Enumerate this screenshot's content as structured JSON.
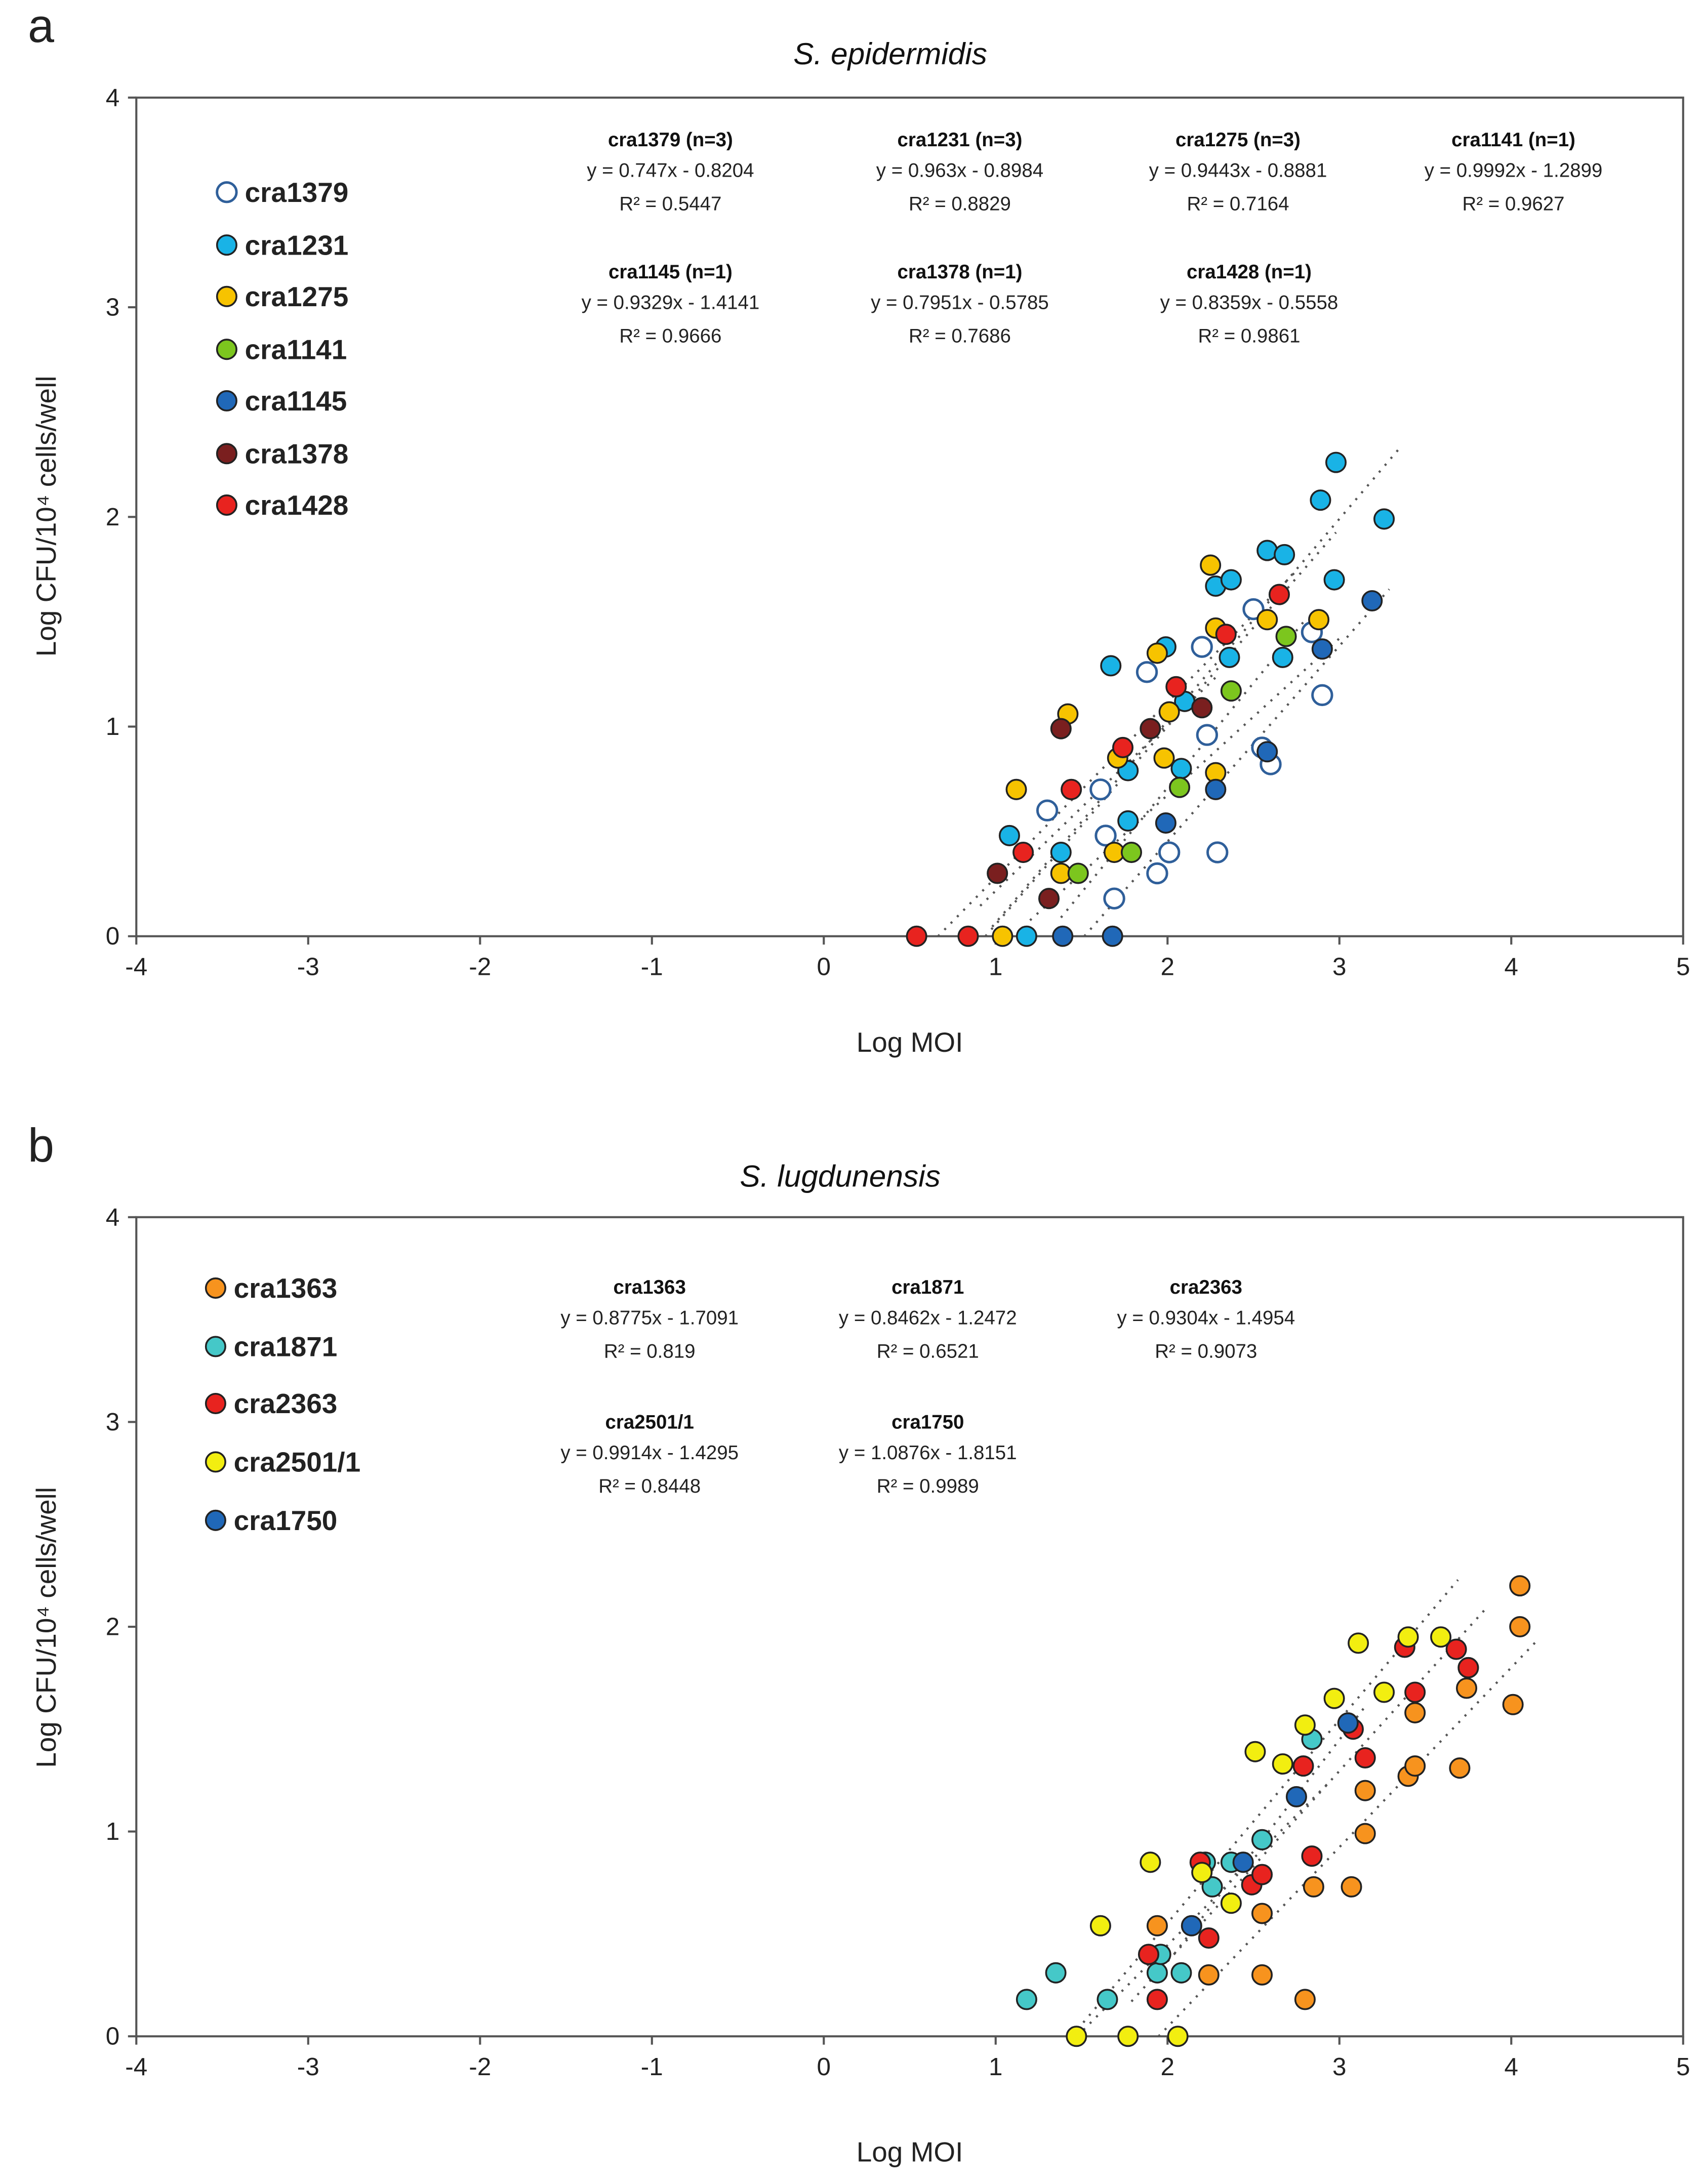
{
  "chart_data": [
    {
      "type": "scatter",
      "panel_label": "a",
      "title": "S. epidermidis",
      "xlabel": "Log MOI",
      "ylabel": "Log CFU/10⁴ cells/well",
      "xlim": [
        -4,
        5
      ],
      "ylim": [
        0,
        4
      ],
      "xticks": [
        "-4",
        "-3",
        "-2",
        "-1",
        "0",
        "1",
        "2",
        "3",
        "4",
        "5"
      ],
      "yticks": [
        "0",
        "1",
        "2",
        "3",
        "4"
      ],
      "legend_position": "top-left",
      "series": [
        {
          "name": "cra1379",
          "color": "#ffffff",
          "stroke": "#2f5f9a",
          "open": true,
          "label": "cra1379 (n=3)",
          "equation": "y = 0.747x - 0.8204",
          "r2": "R² = 0.5447",
          "slope": 0.747,
          "intercept": -0.8204,
          "points": [
            [
              1.3,
              0.6
            ],
            [
              1.61,
              0.7
            ],
            [
              1.64,
              0.48
            ],
            [
              1.69,
              0.18
            ],
            [
              1.88,
              1.26
            ],
            [
              1.94,
              0.3
            ],
            [
              2.01,
              0.4
            ],
            [
              2.2,
              1.38
            ],
            [
              2.23,
              0.96
            ],
            [
              2.29,
              0.4
            ],
            [
              2.5,
              1.56
            ],
            [
              2.55,
              0.9
            ],
            [
              2.6,
              0.82
            ],
            [
              2.84,
              1.45
            ],
            [
              2.9,
              1.15
            ]
          ]
        },
        {
          "name": "cra1231",
          "color": "#19b3e6",
          "label": "cra1231 (n=3)",
          "equation": "y = 0.963x - 0.8984",
          "r2": "R² = 0.8829",
          "slope": 0.963,
          "intercept": -0.8984,
          "points": [
            [
              1.08,
              0.48
            ],
            [
              1.18,
              0
            ],
            [
              1.38,
              0.4
            ],
            [
              1.67,
              1.29
            ],
            [
              1.77,
              0.79
            ],
            [
              1.77,
              0.55
            ],
            [
              1.99,
              1.38
            ],
            [
              2.08,
              0.8
            ],
            [
              2.28,
              1.67
            ],
            [
              2.37,
              1.7
            ],
            [
              2.36,
              1.33
            ],
            [
              2.58,
              1.84
            ],
            [
              2.68,
              1.82
            ],
            [
              2.67,
              1.33
            ],
            [
              2.89,
              2.08
            ],
            [
              2.98,
              2.26
            ],
            [
              2.97,
              1.7
            ],
            [
              3.26,
              1.99
            ],
            [
              2.1,
              1.12
            ]
          ]
        },
        {
          "name": "cra1275",
          "color": "#f7c300",
          "label": "cra1275 (n=3)",
          "equation": "y = 0.9443x - 0.8881",
          "r2": "R² = 0.7164",
          "slope": 0.9443,
          "intercept": -0.8881,
          "points": [
            [
              1.04,
              0
            ],
            [
              1.12,
              0.7
            ],
            [
              1.38,
              0.3
            ],
            [
              1.42,
              1.06
            ],
            [
              1.69,
              0.4
            ],
            [
              1.71,
              0.85
            ],
            [
              1.94,
              1.35
            ],
            [
              1.98,
              0.85
            ],
            [
              2.01,
              1.07
            ],
            [
              2.25,
              1.77
            ],
            [
              2.28,
              1.47
            ],
            [
              2.28,
              0.78
            ],
            [
              2.58,
              1.51
            ],
            [
              2.88,
              1.51
            ]
          ]
        },
        {
          "name": "cra1141",
          "color": "#7cc61e",
          "label": "cra1141 (n=1)",
          "equation": "y = 0.9992x - 1.2899",
          "r2": "R² = 0.9627",
          "slope": 0.9992,
          "intercept": -1.2899,
          "points": [
            [
              1.48,
              0.3
            ],
            [
              1.79,
              0.4
            ],
            [
              2.07,
              0.71
            ],
            [
              2.37,
              1.17
            ],
            [
              2.69,
              1.43
            ]
          ]
        },
        {
          "name": "cra1145",
          "color": "#2068b8",
          "label": "cra1145 (n=1)",
          "equation": "y = 0.9329x - 1.4141",
          "r2": "R² = 0.9666",
          "slope": 0.9329,
          "intercept": -1.4141,
          "points": [
            [
              1.39,
              0
            ],
            [
              1.68,
              0
            ],
            [
              1.99,
              0.54
            ],
            [
              2.28,
              0.7
            ],
            [
              2.58,
              0.88
            ],
            [
              2.9,
              1.37
            ],
            [
              3.19,
              1.6
            ]
          ]
        },
        {
          "name": "cra1378",
          "color": "#7a1f1f",
          "label": "cra1378 (n=1)",
          "equation": "y = 0.7951x - 0.5785",
          "r2": "R² = 0.7686",
          "slope": 0.7951,
          "intercept": -0.5785,
          "points": [
            [
              1.01,
              0.3
            ],
            [
              1.31,
              0.18
            ],
            [
              1.38,
              0.99
            ],
            [
              1.9,
              0.99
            ],
            [
              2.2,
              1.09
            ]
          ]
        },
        {
          "name": "cra1428",
          "color": "#e8231f",
          "label": "cra1428 (n=1)",
          "equation": "y = 0.8359x - 0.5558",
          "r2": "R² = 0.9861",
          "slope": 0.8359,
          "intercept": -0.5558,
          "points": [
            [
              0.54,
              0
            ],
            [
              0.84,
              0
            ],
            [
              1.16,
              0.4
            ],
            [
              1.44,
              0.7
            ],
            [
              1.74,
              0.9
            ],
            [
              2.05,
              1.19
            ],
            [
              2.34,
              1.44
            ],
            [
              2.65,
              1.63
            ]
          ]
        }
      ]
    },
    {
      "type": "scatter",
      "panel_label": "b",
      "title": "S. lugdunensis",
      "xlabel": "Log MOI",
      "ylabel": "Log CFU/10⁴ cells/well",
      "xlim": [
        -4,
        5
      ],
      "ylim": [
        0,
        4
      ],
      "xticks": [
        "-4",
        "-3",
        "-2",
        "-1",
        "0",
        "1",
        "2",
        "3",
        "4",
        "5"
      ],
      "yticks": [
        "0",
        "1",
        "2",
        "3",
        "4"
      ],
      "legend_position": "top-left",
      "series": [
        {
          "name": "cra1363",
          "color": "#f7931e",
          "label": "cra1363",
          "equation": "y = 0.8775x - 1.7091",
          "r2": "R² = 0.819",
          "slope": 0.8775,
          "intercept": -1.7091,
          "points": [
            [
              1.94,
              0.54
            ],
            [
              2.24,
              0.3
            ],
            [
              2.55,
              0.6
            ],
            [
              2.55,
              0.3
            ],
            [
              2.8,
              0.18
            ],
            [
              2.85,
              0.73
            ],
            [
              3.07,
              0.73
            ],
            [
              3.15,
              0.99
            ],
            [
              3.15,
              1.2
            ],
            [
              3.4,
              1.27
            ],
            [
              3.44,
              1.32
            ],
            [
              3.44,
              1.58
            ],
            [
              3.7,
              1.31
            ],
            [
              3.74,
              1.7
            ],
            [
              3.75,
              1.8
            ],
            [
              4.01,
              1.62
            ],
            [
              4.05,
              2.0
            ],
            [
              4.05,
              2.2
            ]
          ]
        },
        {
          "name": "cra1871",
          "color": "#45c8c8",
          "label": "cra1871",
          "equation": "y = 0.8462x - 1.2472",
          "r2": "R² = 0.6521",
          "slope": 0.8462,
          "intercept": -1.2472,
          "points": [
            [
              1.18,
              0.18
            ],
            [
              1.35,
              0.31
            ],
            [
              1.65,
              0.18
            ],
            [
              1.94,
              0.31
            ],
            [
              2.08,
              0.31
            ],
            [
              2.26,
              0.73
            ],
            [
              2.37,
              0.85
            ],
            [
              2.55,
              0.96
            ],
            [
              2.84,
              1.45
            ],
            [
              1.96,
              0.4
            ],
            [
              2.22,
              0.85
            ]
          ]
        },
        {
          "name": "cra2363",
          "color": "#e8231f",
          "label": "cra2363",
          "equation": "y = 0.9304x - 1.4954",
          "r2": "R² = 0.9073",
          "slope": 0.9304,
          "intercept": -1.4954,
          "points": [
            [
              1.89,
              0.4
            ],
            [
              1.94,
              0.18
            ],
            [
              2.19,
              0.85
            ],
            [
              2.24,
              0.48
            ],
            [
              2.49,
              0.74
            ],
            [
              2.55,
              0.79
            ],
            [
              2.79,
              1.32
            ],
            [
              2.84,
              0.88
            ],
            [
              3.08,
              1.5
            ],
            [
              3.15,
              1.36
            ],
            [
              3.44,
              1.68
            ],
            [
              3.38,
              1.9
            ],
            [
              3.68,
              1.89
            ],
            [
              3.75,
              1.8
            ]
          ]
        },
        {
          "name": "cra2501/1",
          "color": "#f2ee10",
          "label": "cra2501/1",
          "equation": "y = 0.9914x - 1.4295",
          "r2": "R² = 0.8448",
          "slope": 0.9914,
          "intercept": -1.4295,
          "points": [
            [
              1.47,
              0
            ],
            [
              1.77,
              0
            ],
            [
              2.06,
              0
            ],
            [
              1.61,
              0.54
            ],
            [
              1.9,
              0.85
            ],
            [
              2.2,
              0.8
            ],
            [
              2.37,
              0.65
            ],
            [
              2.51,
              1.39
            ],
            [
              2.67,
              1.33
            ],
            [
              2.8,
              1.52
            ],
            [
              2.97,
              1.65
            ],
            [
              3.11,
              1.92
            ],
            [
              3.26,
              1.68
            ],
            [
              3.4,
              1.95
            ],
            [
              3.59,
              1.95
            ]
          ]
        },
        {
          "name": "cra1750",
          "color": "#2068b8",
          "label": "cra1750",
          "equation": "y = 1.0876x - 1.8151",
          "r2": "R² = 0.9989",
          "slope": 1.0876,
          "intercept": -1.8151,
          "points": [
            [
              2.14,
              0.54
            ],
            [
              2.44,
              0.85
            ],
            [
              2.75,
              1.17
            ],
            [
              3.05,
              1.53
            ]
          ]
        }
      ]
    }
  ]
}
